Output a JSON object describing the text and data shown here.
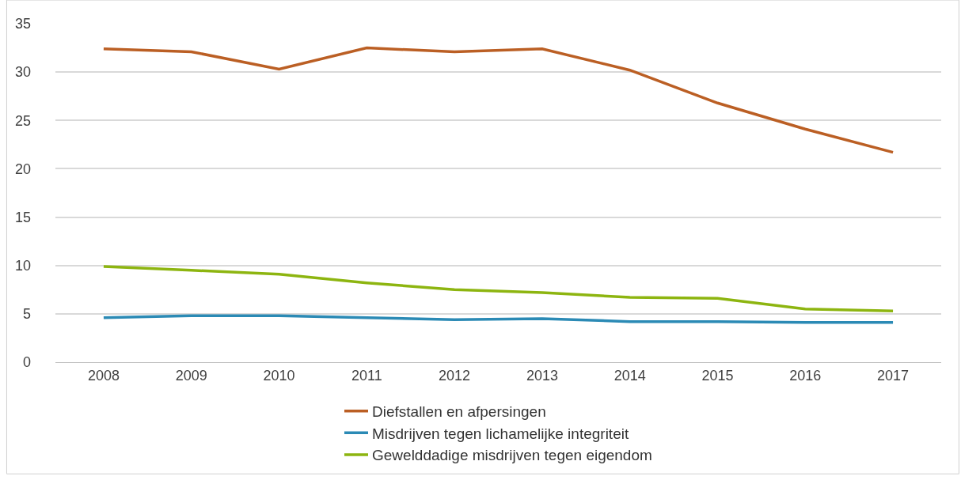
{
  "chart_data": {
    "type": "line",
    "categories": [
      "2008",
      "2009",
      "2010",
      "2011",
      "2012",
      "2013",
      "2014",
      "2015",
      "2016",
      "2017"
    ],
    "series": [
      {
        "name": "Diefstallen en afpersingen",
        "color": "#bb5f24",
        "values": [
          32.4,
          32.1,
          30.3,
          32.5,
          32.1,
          32.4,
          30.2,
          26.8,
          24.1,
          21.7
        ]
      },
      {
        "name": "Misdrijven tegen lichamelijke integriteit",
        "color": "#2b8ab5",
        "values": [
          4.6,
          4.8,
          4.8,
          4.6,
          4.4,
          4.5,
          4.2,
          4.2,
          4.1,
          4.1
        ]
      },
      {
        "name": "Gewelddadige misdrijven tegen eigendom",
        "color": "#8db510",
        "values": [
          9.9,
          9.5,
          9.1,
          8.2,
          7.5,
          7.2,
          6.7,
          6.6,
          5.5,
          5.3
        ]
      }
    ],
    "ylim": [
      0,
      35
    ],
    "yticks": [
      0,
      5,
      10,
      15,
      20,
      25,
      30,
      35
    ],
    "grid": "y",
    "legend": "bottom",
    "marker": "none",
    "line_style": "solid"
  }
}
